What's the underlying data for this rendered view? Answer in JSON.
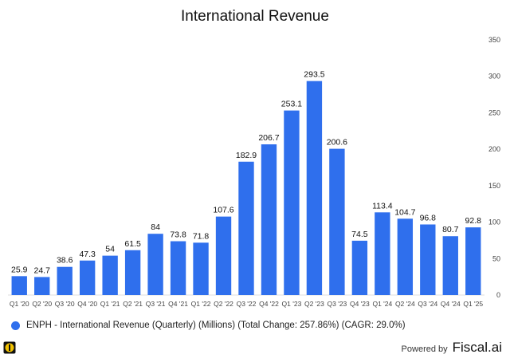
{
  "chart_data": {
    "type": "bar",
    "title": "International Revenue",
    "xlabel": "",
    "ylabel": "",
    "categories": [
      "Q1 '20",
      "Q2 '20",
      "Q3 '20",
      "Q4 '20",
      "Q1 '21",
      "Q2 '21",
      "Q3 '21",
      "Q4 '21",
      "Q1 '22",
      "Q2 '22",
      "Q3 '22",
      "Q4 '22",
      "Q1 '23",
      "Q2 '23",
      "Q3 '23",
      "Q4 '23",
      "Q1 '24",
      "Q2 '24",
      "Q3 '24",
      "Q4 '24",
      "Q1 '25"
    ],
    "series": [
      {
        "name": "ENPH - International Revenue (Quarterly) (Millions) (Total Change: 257.86%) (CAGR: 29.0%)",
        "values": [
          25.9,
          24.7,
          38.6,
          47.3,
          54,
          61.5,
          84,
          73.8,
          71.8,
          107.6,
          182.9,
          206.7,
          253.1,
          293.5,
          200.6,
          74.5,
          113.4,
          104.7,
          96.8,
          80.7,
          92.8
        ],
        "labels": [
          "25.9",
          "24.7",
          "38.6",
          "47.3",
          "54",
          "61.5",
          "84",
          "73.8",
          "71.8",
          "107.6",
          "182.9",
          "206.7",
          "253.1",
          "293.5",
          "200.6",
          "74.5",
          "113.4",
          "104.7",
          "96.8",
          "80.7",
          "92.8"
        ]
      }
    ],
    "ylim": [
      0,
      350
    ],
    "yticks": [
      "0",
      "50",
      "100",
      "150",
      "200",
      "250",
      "300",
      "350"
    ],
    "y_axis_side": "right",
    "grid": false,
    "legend_position": "bottom-left",
    "bar_color": "#2f6fed"
  },
  "footer": {
    "powered_label": "Powered by",
    "brand": "Fiscal.ai"
  }
}
